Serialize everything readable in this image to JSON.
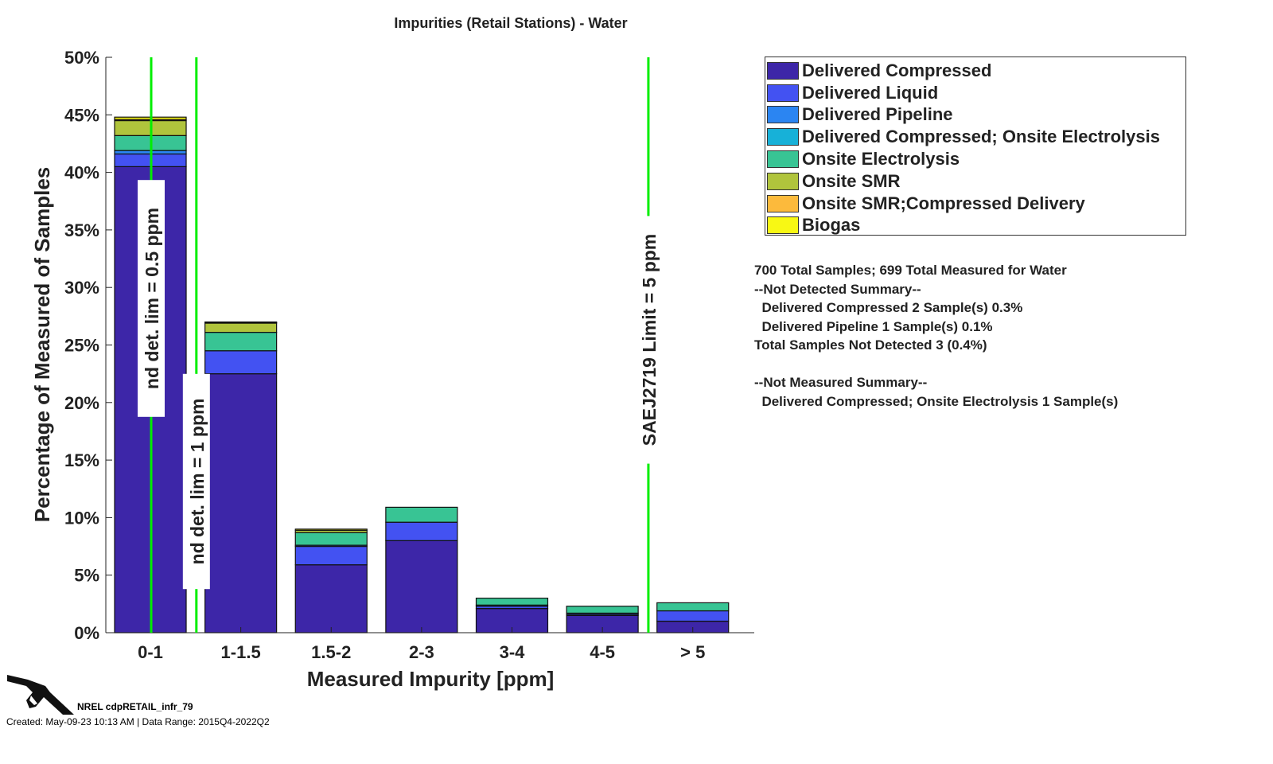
{
  "chart_data": {
    "type": "bar",
    "stacked": true,
    "title": "Impurities (Retail Stations) - Water",
    "xlabel": "Measured Impurity [ppm]",
    "ylabel": "Percentage of Measured of Samples",
    "ylim": [
      0,
      50
    ],
    "yticks": [
      "0%",
      "5%",
      "10%",
      "15%",
      "20%",
      "25%",
      "30%",
      "35%",
      "40%",
      "45%",
      "50%"
    ],
    "categories": [
      "0-1",
      "1-1.5",
      "1.5-2",
      "2-3",
      "3-4",
      "4-5",
      "> 5"
    ],
    "series": [
      {
        "name": "Delivered Compressed",
        "color": "#3d26a8",
        "values": [
          40.5,
          22.5,
          5.9,
          8.0,
          2.1,
          1.5,
          1.0
        ]
      },
      {
        "name": "Delivered Liquid",
        "color": "#4352f2",
        "values": [
          1.1,
          2.0,
          1.6,
          1.6,
          0.2,
          0.1,
          0.9
        ]
      },
      {
        "name": "Delivered Pipeline",
        "color": "#2b85f2",
        "values": [
          0.3,
          0,
          0.1,
          0,
          0,
          0.1,
          0
        ]
      },
      {
        "name": "Delivered Compressed; Onsite Electrolysis",
        "color": "#17b1d8",
        "values": [
          0,
          0,
          0,
          0,
          0.1,
          0,
          0
        ]
      },
      {
        "name": "Onsite Electrolysis",
        "color": "#38c494",
        "values": [
          1.3,
          1.6,
          1.1,
          1.3,
          0.6,
          0.6,
          0.7
        ]
      },
      {
        "name": "Onsite SMR",
        "color": "#b0c43c",
        "values": [
          1.3,
          0.8,
          0.2,
          0,
          0,
          0,
          0
        ]
      },
      {
        "name": "Onsite SMR;Compressed Delivery",
        "color": "#fcba3c",
        "values": [
          0.1,
          0.05,
          0,
          0,
          0,
          0,
          0
        ]
      },
      {
        "name": "Biogas",
        "color": "#f8f814",
        "values": [
          0.2,
          0.05,
          0.1,
          0,
          0,
          0,
          0
        ]
      }
    ],
    "reference_lines": [
      {
        "x": 1,
        "label": "nd det. lim = 0.5 ppm"
      },
      {
        "x": 1.5,
        "label": "nd det. lim = 1 ppm"
      },
      {
        "x": 6.5,
        "label": "SAEJ2719 Limit = 5 ppm"
      }
    ],
    "legend_position": "right"
  },
  "notes": [
    "700 Total Samples; 699 Total Measured for Water",
    "--Not Detected Summary--",
    "  Delivered Compressed 2 Sample(s) 0.3%",
    "  Delivered Pipeline 1 Sample(s) 0.1%",
    "Total Samples Not Detected 3 (0.4%)",
    "",
    "--Not Measured Summary--",
    "  Delivered Compressed; Onsite Electrolysis 1 Sample(s)"
  ],
  "footer": {
    "id": "NREL cdpRETAIL_infr_79",
    "created": "Created: May-09-23 10:13 AM | Data Range: 2015Q4-2022Q2"
  }
}
